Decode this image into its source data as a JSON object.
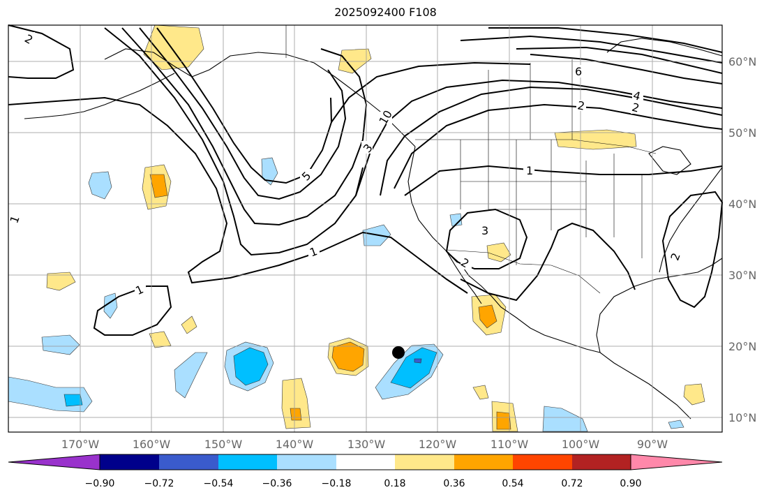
{
  "map": {
    "title": "2025092400 F108",
    "lat_labels": [
      "60°N",
      "50°N",
      "40°N",
      "30°N",
      "20°N",
      "10°N"
    ],
    "lon_labels": [
      "170°W",
      "160°W",
      "150°W",
      "140°W",
      "130°W",
      "120°W",
      "110°W",
      "100°W",
      "90°W"
    ],
    "contour_labels": [
      "1",
      "1",
      "1",
      "1",
      "2",
      "2",
      "2",
      "2",
      "2",
      "3",
      "3",
      "4",
      "5",
      "6",
      "10"
    ],
    "marker": "storm-position-dot"
  },
  "colorbar": {
    "ticks": [
      "−0.90",
      "−0.72",
      "−0.54",
      "−0.36",
      "−0.18",
      "0.18",
      "0.36",
      "0.54",
      "0.72",
      "0.90"
    ],
    "colors": [
      "#9932cc",
      "#00008b",
      "#3a5bcc",
      "#00bfff",
      "#aadfff",
      "#ffffff",
      "#ffe88a",
      "#ffa500",
      "#ff4500",
      "#b22222",
      "#ff88aa"
    ]
  }
}
